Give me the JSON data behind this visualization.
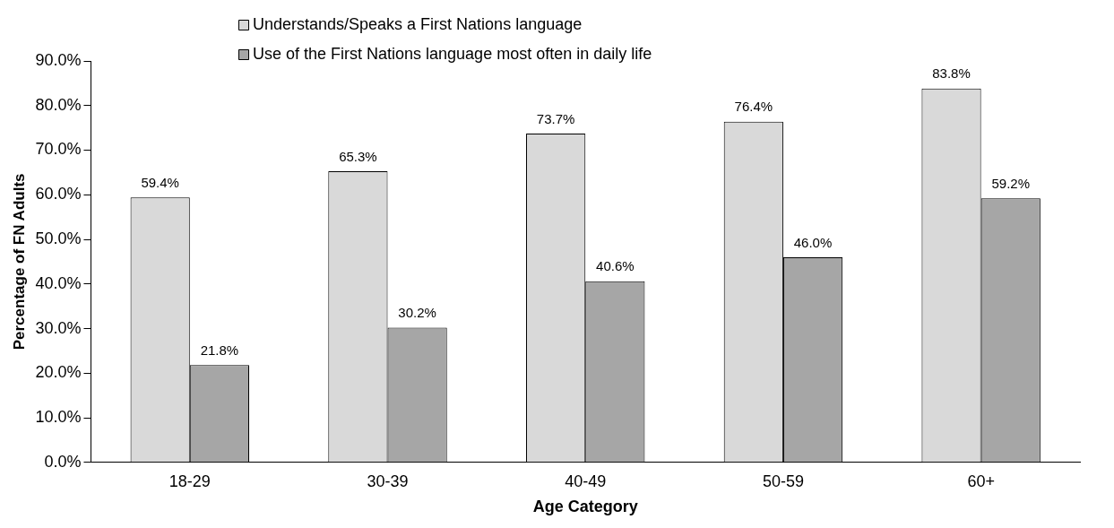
{
  "chart_data": {
    "type": "bar",
    "xlabel": "Age Category",
    "ylabel": "Percentage of FN Adults",
    "categories": [
      "18-29",
      "30-39",
      "40-49",
      "50-59",
      "60+"
    ],
    "series": [
      {
        "name": "Understands/Speaks a First Nations language",
        "color": "#d9d9d9",
        "values": [
          59.4,
          65.3,
          73.7,
          76.4,
          83.8
        ],
        "value_labels": [
          "59.4%",
          "65.3%",
          "73.7%",
          "76.4%",
          "83.8%"
        ]
      },
      {
        "name": "Use of the First Nations language most often in daily life",
        "color": "#a6a6a6",
        "values": [
          21.8,
          30.2,
          40.6,
          46.0,
          59.2
        ],
        "value_labels": [
          "21.8%",
          "30.2%",
          "40.6%",
          "46.0%",
          "59.2%"
        ]
      }
    ],
    "ylim": [
      0,
      90
    ],
    "yticks": [
      {
        "value": 0,
        "label": "0.0%"
      },
      {
        "value": 10,
        "label": "10.0%"
      },
      {
        "value": 20,
        "label": "20.0%"
      },
      {
        "value": 30,
        "label": "30.0%"
      },
      {
        "value": 40,
        "label": "40.0%"
      },
      {
        "value": 50,
        "label": "50.0%"
      },
      {
        "value": 60,
        "label": "60.0%"
      },
      {
        "value": 70,
        "label": "70.0%"
      },
      {
        "value": 80,
        "label": "80.0%"
      },
      {
        "value": 90,
        "label": "90.0%"
      }
    ],
    "grid": false,
    "legend": "top"
  }
}
